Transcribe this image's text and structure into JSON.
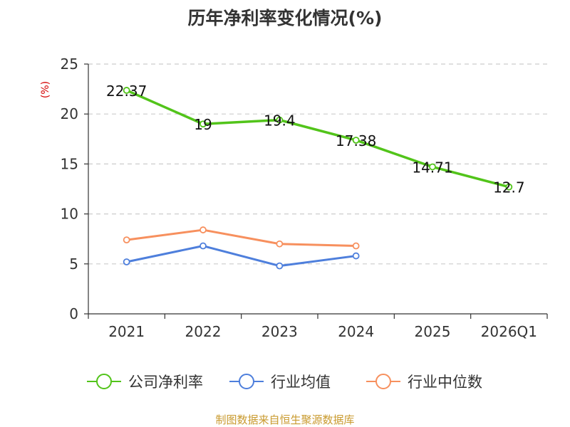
{
  "chart_data": {
    "type": "line",
    "title": "历年净利率变化情况(%)",
    "ylabel": "(%)",
    "ylim": [
      0,
      25
    ],
    "yticks": [
      0,
      5,
      10,
      15,
      20,
      25
    ],
    "grid": true,
    "categories": [
      "2021",
      "2022",
      "2023",
      "2024",
      "2025",
      "2026Q1"
    ],
    "series": [
      {
        "name": "公司净利率",
        "color": "#52c41a",
        "values": [
          22.37,
          19,
          19.4,
          17.38,
          14.71,
          12.7
        ],
        "labels": [
          "22.37",
          "19",
          "19.4",
          "17.38",
          "14.71",
          "12.7"
        ]
      },
      {
        "name": "行业均值",
        "color": "#4e7fdc",
        "values": [
          5.2,
          6.8,
          4.8,
          5.8,
          null,
          null
        ]
      },
      {
        "name": "行业中位数",
        "color": "#f7905e",
        "values": [
          7.4,
          8.4,
          7.0,
          6.8,
          null,
          null
        ]
      }
    ],
    "legend_position": "bottom",
    "source": "制图数据来自恒生聚源数据库"
  },
  "colors": {
    "title": "#333333",
    "ylabel": "#d40000",
    "axis": "#333333",
    "grid": "#cccccc",
    "source": "#c99a2e"
  }
}
